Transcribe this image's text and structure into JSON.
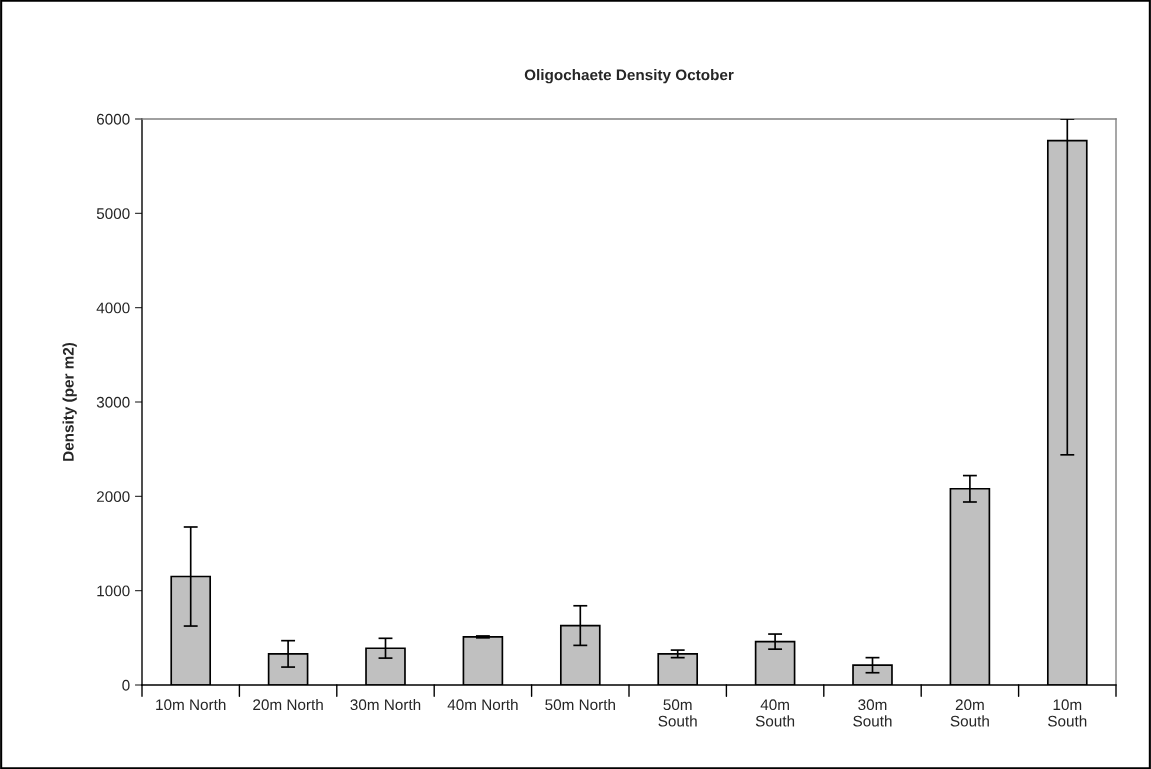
{
  "chart_data": {
    "type": "bar",
    "title": "Oligochaete Density October",
    "ylabel": "Density (per m2)",
    "categories": [
      "10m North",
      "20m North",
      "30m North",
      "40m North",
      "50m North",
      "50m\nSouth",
      "40m\nSouth",
      "30m\nSouth",
      "20m\nSouth",
      "10m\nSouth"
    ],
    "values": [
      1150,
      330,
      390,
      510,
      630,
      330,
      460,
      210,
      2080,
      5770
    ],
    "errors": [
      525,
      140,
      105,
      10,
      210,
      40,
      80,
      80,
      140,
      [
        2440,
        6000
      ]
    ],
    "color": "#c0c0c0",
    "ylim": [
      0,
      6000
    ],
    "yticks": [
      0,
      1000,
      2000,
      3000,
      4000,
      5000,
      6000
    ],
    "grid": false
  }
}
